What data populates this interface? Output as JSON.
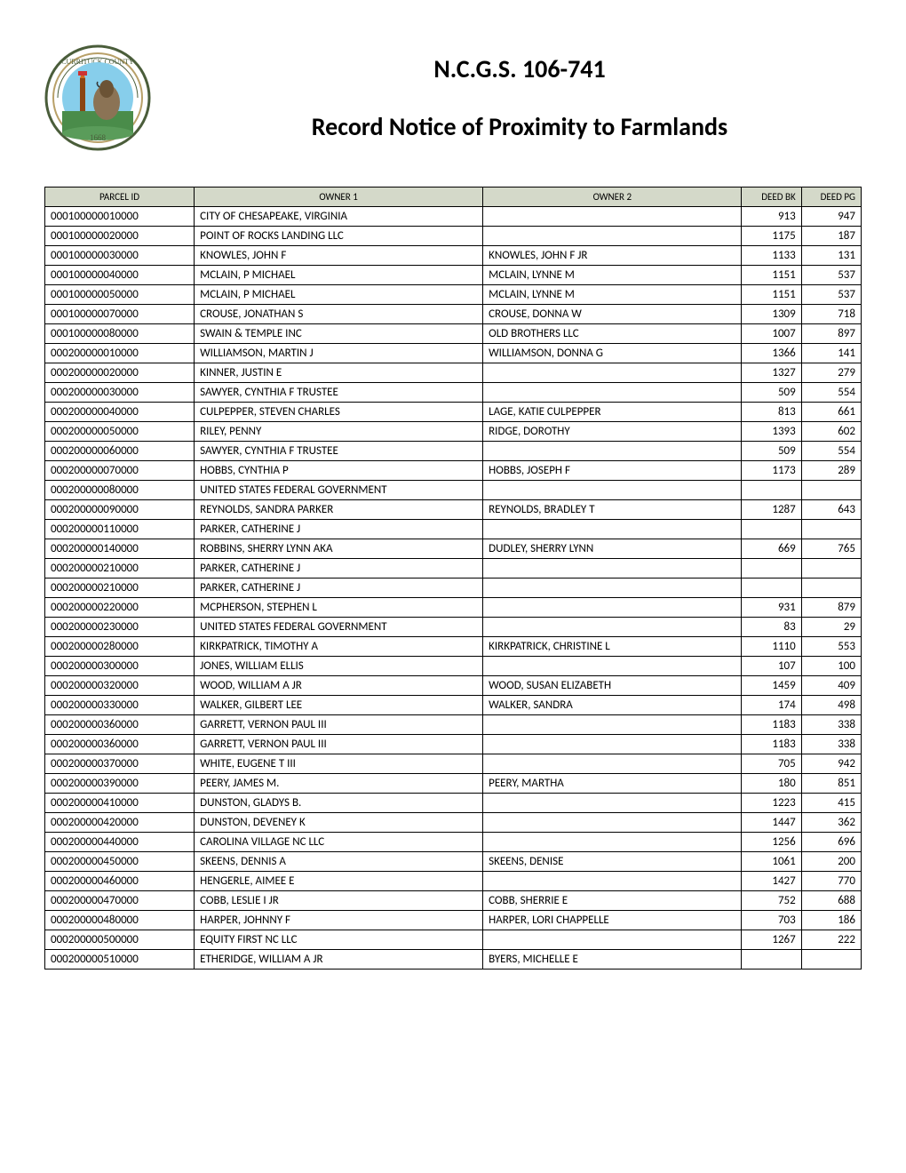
{
  "header": {
    "title": "N.C.G.S. 106-741",
    "subtitle": "Record Notice of Proximity to Farmlands"
  },
  "table": {
    "columns": [
      "PARCEL ID",
      "OWNER 1",
      "OWNER 2",
      "DEED BK",
      "DEED PG"
    ],
    "rows": [
      [
        "000100000010000",
        "CITY OF CHESAPEAKE, VIRGINIA",
        "",
        "913",
        "947"
      ],
      [
        "000100000020000",
        "POINT OF ROCKS LANDING LLC",
        "",
        "1175",
        "187"
      ],
      [
        "000100000030000",
        "KNOWLES, JOHN F",
        "KNOWLES, JOHN F JR",
        "1133",
        "131"
      ],
      [
        "000100000040000",
        "MCLAIN, P MICHAEL",
        "MCLAIN, LYNNE M",
        "1151",
        "537"
      ],
      [
        "000100000050000",
        "MCLAIN, P MICHAEL",
        "MCLAIN, LYNNE M",
        "1151",
        "537"
      ],
      [
        "000100000070000",
        "CROUSE, JONATHAN S",
        "CROUSE, DONNA W",
        "1309",
        "718"
      ],
      [
        "000100000080000",
        "SWAIN & TEMPLE INC",
        "OLD BROTHERS LLC",
        "1007",
        "897"
      ],
      [
        "000200000010000",
        "WILLIAMSON, MARTIN J",
        "WILLIAMSON, DONNA G",
        "1366",
        "141"
      ],
      [
        "000200000020000",
        "KINNER, JUSTIN E",
        "",
        "1327",
        "279"
      ],
      [
        "000200000030000",
        "SAWYER, CYNTHIA F TRUSTEE",
        "",
        "509",
        "554"
      ],
      [
        "000200000040000",
        "CULPEPPER, STEVEN CHARLES",
        "LAGE, KATIE CULPEPPER",
        "813",
        "661"
      ],
      [
        "000200000050000",
        "RILEY, PENNY",
        "RIDGE, DOROTHY",
        "1393",
        "602"
      ],
      [
        "000200000060000",
        "SAWYER, CYNTHIA F TRUSTEE",
        "",
        "509",
        "554"
      ],
      [
        "000200000070000",
        "HOBBS, CYNTHIA P",
        "HOBBS, JOSEPH F",
        "1173",
        "289"
      ],
      [
        "000200000080000",
        "UNITED STATES FEDERAL GOVERNMENT",
        "",
        "",
        ""
      ],
      [
        "000200000090000",
        "REYNOLDS, SANDRA PARKER",
        "REYNOLDS, BRADLEY T",
        "1287",
        "643"
      ],
      [
        "000200000110000",
        "PARKER, CATHERINE J",
        "",
        "",
        ""
      ],
      [
        "000200000140000",
        "ROBBINS, SHERRY LYNN AKA",
        "DUDLEY, SHERRY LYNN",
        "669",
        "765"
      ],
      [
        "000200000210000",
        "PARKER, CATHERINE J",
        "",
        "",
        ""
      ],
      [
        "000200000210000",
        "PARKER, CATHERINE J",
        "",
        "",
        ""
      ],
      [
        "000200000220000",
        "MCPHERSON, STEPHEN L",
        "",
        "931",
        "879"
      ],
      [
        "000200000230000",
        "UNITED STATES FEDERAL GOVERNMENT",
        "",
        "83",
        "29"
      ],
      [
        "000200000280000",
        "KIRKPATRICK, TIMOTHY A",
        "KIRKPATRICK, CHRISTINE L",
        "1110",
        "553"
      ],
      [
        "000200000300000",
        "JONES, WILLIAM ELLIS",
        "",
        "107",
        "100"
      ],
      [
        "000200000320000",
        "WOOD, WILLIAM A JR",
        "WOOD, SUSAN ELIZABETH",
        "1459",
        "409"
      ],
      [
        "000200000330000",
        "WALKER, GILBERT LEE",
        "WALKER, SANDRA",
        "174",
        "498"
      ],
      [
        "000200000360000",
        "GARRETT, VERNON PAUL III",
        "",
        "1183",
        "338"
      ],
      [
        "000200000360000",
        "GARRETT, VERNON PAUL III",
        "",
        "1183",
        "338"
      ],
      [
        "000200000370000",
        "WHITE, EUGENE T III",
        "",
        "705",
        "942"
      ],
      [
        "000200000390000",
        "PEERY, JAMES M.",
        "PEERY, MARTHA",
        "180",
        "851"
      ],
      [
        "000200000410000",
        "DUNSTON, GLADYS B.",
        "",
        "1223",
        "415"
      ],
      [
        "000200000420000",
        "DUNSTON, DEVENEY K",
        "",
        "1447",
        "362"
      ],
      [
        "000200000440000",
        "CAROLINA VILLAGE NC LLC",
        "",
        "1256",
        "696"
      ],
      [
        "000200000450000",
        "SKEENS, DENNIS A",
        "SKEENS, DENISE",
        "1061",
        "200"
      ],
      [
        "000200000460000",
        "HENGERLE, AIMEE E",
        "",
        "1427",
        "770"
      ],
      [
        "000200000470000",
        "COBB, LESLIE I JR",
        "COBB, SHERRIE E",
        "752",
        "688"
      ],
      [
        "000200000480000",
        "HARPER, JOHNNY F",
        "HARPER, LORI CHAPPELLE",
        "703",
        "186"
      ],
      [
        "000200000500000",
        "EQUITY FIRST NC LLC",
        "",
        "1267",
        "222"
      ],
      [
        "000200000510000",
        "ETHERIDGE, WILLIAM A JR",
        "BYERS, MICHELLE E",
        "",
        ""
      ]
    ]
  },
  "styling": {
    "header_bg": "#d4d9c9",
    "border_color": "#000000",
    "body_bg": "#ffffff",
    "title_fontsize": 28,
    "header_fontsize": 11,
    "cell_fontsize": 13
  }
}
